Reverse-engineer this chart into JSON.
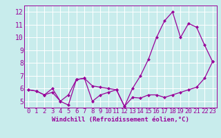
{
  "xlabel": "Windchill (Refroidissement éolien,°C)",
  "bg_color": "#c8ecec",
  "line_color": "#990099",
  "grid_color": "#ffffff",
  "xlim": [
    -0.5,
    23.5
  ],
  "ylim": [
    4.5,
    12.5
  ],
  "yticks": [
    5,
    6,
    7,
    8,
    9,
    10,
    11,
    12
  ],
  "xticks": [
    0,
    1,
    2,
    3,
    4,
    5,
    6,
    7,
    8,
    9,
    10,
    11,
    12,
    13,
    14,
    15,
    16,
    17,
    18,
    19,
    20,
    21,
    22,
    23
  ],
  "line1_x": [
    0,
    1,
    2,
    3,
    4,
    5,
    6,
    7,
    8,
    9,
    10,
    11,
    12,
    13,
    14,
    15,
    16,
    17,
    18,
    19,
    20,
    21,
    22,
    23
  ],
  "line1_y": [
    5.9,
    5.8,
    5.5,
    5.7,
    5.0,
    4.7,
    6.7,
    6.8,
    5.0,
    5.5,
    5.7,
    5.9,
    4.6,
    5.3,
    5.25,
    5.5,
    5.5,
    5.3,
    5.5,
    5.7,
    5.9,
    6.1,
    6.8,
    8.1
  ],
  "line2_x": [
    0,
    1,
    2,
    3,
    4,
    5,
    6,
    7,
    8,
    9,
    10,
    11,
    12,
    13,
    14,
    15,
    16,
    17,
    18,
    19,
    20,
    21,
    22,
    23
  ],
  "line2_y": [
    5.9,
    5.8,
    5.5,
    6.0,
    5.0,
    5.5,
    6.7,
    6.8,
    6.2,
    6.1,
    6.0,
    5.9,
    4.6,
    6.0,
    7.0,
    8.3,
    10.0,
    11.3,
    12.0,
    10.0,
    11.1,
    10.8,
    9.4,
    8.1
  ],
  "xlabel_fontsize": 6.5,
  "tick_fontsize": 7,
  "linewidth": 0.9,
  "markersize": 2.5
}
